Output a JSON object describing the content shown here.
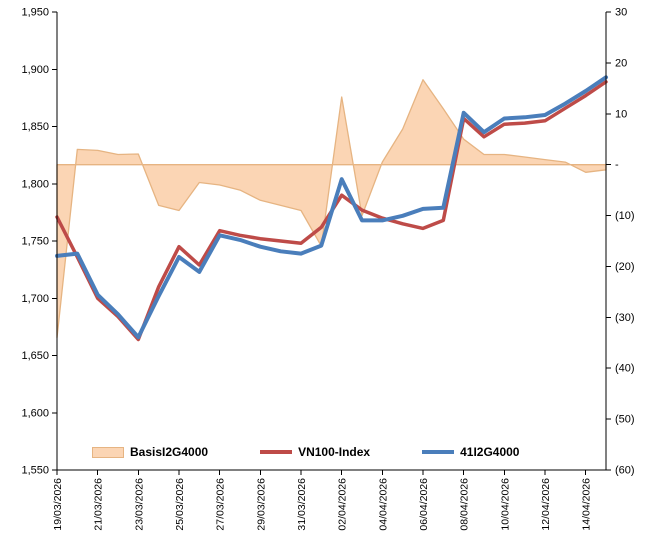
{
  "chart_data": {
    "type": "combo-line-area",
    "title": "",
    "x_labels": [
      "19/03/2026",
      "21/03/2026",
      "23/03/2026",
      "25/03/2026",
      "27/03/2026",
      "29/03/2026",
      "31/03/2026",
      "02/04/2026",
      "04/04/2026",
      "06/04/2026",
      "08/04/2026",
      "10/04/2026",
      "12/04/2026",
      "14/04/2026"
    ],
    "x_all": [
      "19/03/2026",
      "20/03/2026",
      "21/03/2026",
      "22/03/2026",
      "23/03/2026",
      "24/03/2026",
      "25/03/2026",
      "26/03/2026",
      "27/03/2026",
      "28/03/2026",
      "29/03/2026",
      "30/03/2026",
      "31/03/2026",
      "01/04/2026",
      "02/04/2026",
      "03/04/2026",
      "04/04/2026",
      "05/04/2026",
      "06/04/2026",
      "07/04/2026",
      "08/04/2026",
      "09/04/2026",
      "10/04/2026",
      "11/04/2026",
      "12/04/2026",
      "13/04/2026",
      "14/04/2026",
      "15/04/2026"
    ],
    "left_axis": {
      "min": 1550,
      "max": 1950,
      "values": [
        1950,
        1900,
        1850,
        1800,
        1750,
        1700,
        1650,
        1600,
        1550
      ],
      "tick_labels": [
        "1,950",
        "1,900",
        "1,850",
        "1,800",
        "1,750",
        "1,700",
        "1,650",
        "1,600",
        "1,550"
      ]
    },
    "right_axis": {
      "min": -60,
      "max": 30,
      "values": [
        30,
        20,
        10,
        0,
        -10,
        -20,
        -30,
        -40,
        -50,
        -60
      ],
      "tick_labels": [
        "30",
        "20",
        "10",
        "-",
        "(10)",
        "(20)",
        "(30)",
        "(40)",
        "(50)",
        "(60)"
      ]
    },
    "series": [
      {
        "name": "BasisI2G4000",
        "type": "area",
        "axis": "right",
        "fill": "#FBD5B4",
        "stroke": "#E6B482",
        "values": [
          -34,
          3,
          2.8,
          2,
          2.1,
          -8,
          -9,
          -3.5,
          -4,
          -5,
          -7,
          -8,
          -9,
          -16,
          13.3,
          -10,
          0.5,
          7,
          16.7,
          11,
          5,
          2,
          2,
          1.5,
          1,
          0.5,
          -1.5,
          -1
        ]
      },
      {
        "name": "VN100-Index",
        "type": "line",
        "axis": "left",
        "color": "#BE4B48",
        "width": 3.5,
        "values": [
          1771,
          1736,
          1700,
          1684,
          1664,
          1710,
          1745,
          1729,
          1759,
          1755,
          1752,
          1750,
          1748,
          1762,
          1790,
          1777,
          1770,
          1765,
          1761,
          1768,
          1857,
          1841,
          1852,
          1853,
          1855,
          1866,
          1877,
          1889
        ]
      },
      {
        "name": "41I2G4000",
        "type": "line",
        "axis": "left",
        "color": "#4A7EBB",
        "width": 4,
        "values": [
          1737,
          1739,
          1703,
          1686,
          1666,
          1702,
          1736,
          1723,
          1755,
          1751,
          1745,
          1741,
          1739,
          1746,
          1804,
          1768,
          1768,
          1772,
          1778,
          1779,
          1862,
          1845,
          1857,
          1858,
          1860,
          1870,
          1881,
          1893
        ]
      }
    ],
    "legend": {
      "items": [
        {
          "label": "BasisI2G4000"
        },
        {
          "label": "VN100-Index"
        },
        {
          "label": "41I2G4000"
        }
      ]
    }
  }
}
